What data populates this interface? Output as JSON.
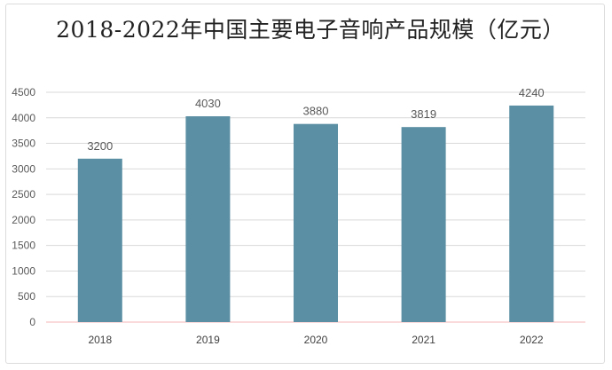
{
  "chart_data": {
    "type": "bar",
    "title": "2018-2022年中国主要电子音响产品规模（亿元）",
    "xlabel": "",
    "ylabel": "",
    "categories": [
      "2018",
      "2019",
      "2020",
      "2021",
      "2022"
    ],
    "series": [
      {
        "values": [
          3200,
          4030,
          3880,
          3819,
          4240
        ],
        "data_labels": [
          "3200",
          "4030",
          "3880",
          "3819",
          "4240"
        ]
      }
    ],
    "ylim": [
      0,
      4500
    ],
    "yticks": [
      "0",
      "500",
      "1000",
      "1500",
      "2000",
      "2500",
      "3000",
      "3500",
      "4000",
      "4500"
    ],
    "grid": true,
    "legend": "none",
    "colors": {
      "bar": "#5b8fa3",
      "grid": "#d9d9d9",
      "axis": "#f4b6b6",
      "text": "#595959"
    }
  }
}
